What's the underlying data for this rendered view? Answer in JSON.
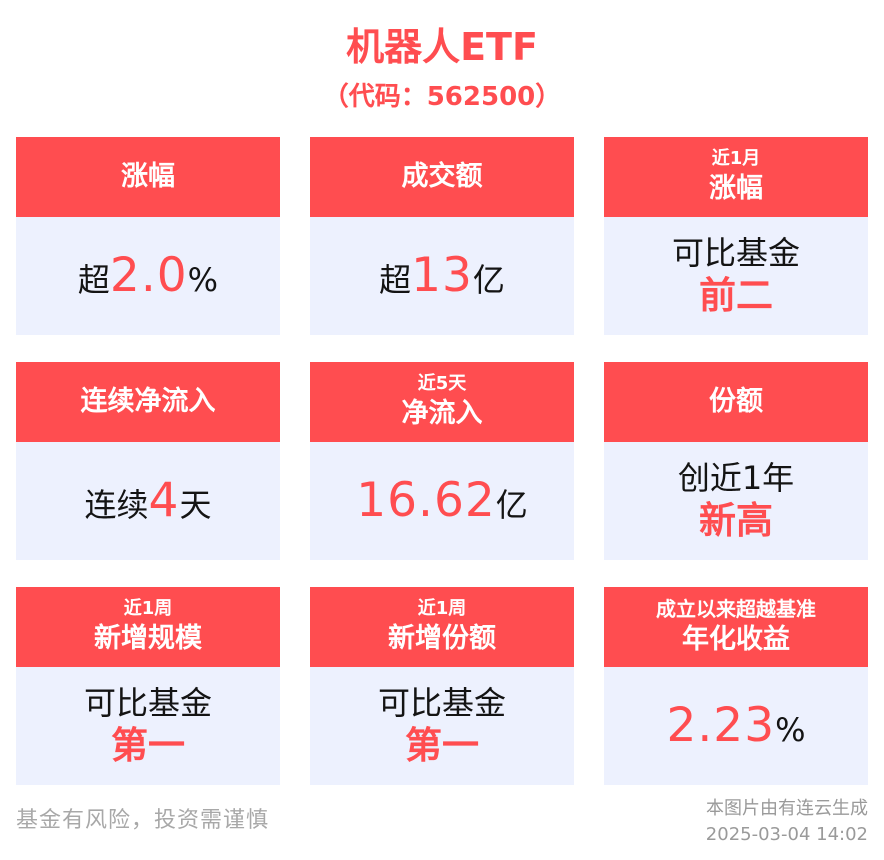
{
  "header": {
    "title": "机器人ETF",
    "subtitle": "（代码：562500）"
  },
  "colors": {
    "accent": "#FF4D50",
    "card_body_bg": "#EDF1FE"
  },
  "cards": [
    {
      "h2": "涨幅",
      "b_pre": "超",
      "b_num": "2.0",
      "b_post": "%"
    },
    {
      "h2": "成交额",
      "b_pre": "超",
      "b_num": "13",
      "b_post": "亿"
    },
    {
      "h1": "近1月",
      "h2": "涨幅",
      "b_line1": "可比基金",
      "b_line2": "前二"
    },
    {
      "h2": "连续净流入",
      "b_pre": "连续",
      "b_num": "4",
      "b_post": "天"
    },
    {
      "h1": "近5天",
      "h2": "净流入",
      "b_num": "16.62",
      "b_post": "亿"
    },
    {
      "h2": "份额",
      "b_line1": "创近1年",
      "b_line2": "新高"
    },
    {
      "h1": "近1周",
      "h2": "新增规模",
      "b_line1": "可比基金",
      "b_line2": "第一"
    },
    {
      "h1": "近1周",
      "h2": "新增份额",
      "b_line1": "可比基金",
      "b_line2": "第一"
    },
    {
      "h1": "成立以来超越基准",
      "h2": "年化收益",
      "b_num": "2.23",
      "b_post": "%"
    }
  ],
  "footer": {
    "disclaimer": "基金有风险，投资需谨慎",
    "credit": "本图片由有连云生成",
    "timestamp": "2025-03-04 14:02"
  }
}
